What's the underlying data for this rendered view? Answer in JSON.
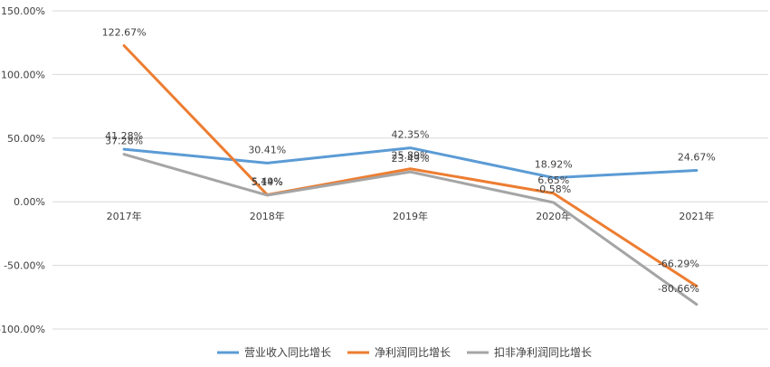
{
  "chart_data": {
    "type": "line",
    "categories": [
      "2017年",
      "2018年",
      "2019年",
      "2020年",
      "2021年"
    ],
    "series": [
      {
        "name": "营业收入同比增长",
        "color": "#5B9BD5",
        "values": [
          41.28,
          30.41,
          42.35,
          18.92,
          24.67
        ],
        "labels": [
          "41.28%",
          "30.41%",
          "42.35%",
          "18.92%",
          "24.67%"
        ]
      },
      {
        "name": "净利润同比增长",
        "color": "#ED7D31",
        "values": [
          122.67,
          5.49,
          25.89,
          6.65,
          -66.29
        ],
        "labels": [
          "122.67%",
          "5.49%",
          "25.89%",
          "6.65%",
          "-66.29%"
        ]
      },
      {
        "name": "扣非净利润同比增长",
        "color": "#A5A5A5",
        "values": [
          37.28,
          5.14,
          23.49,
          -0.58,
          -80.66
        ],
        "labels": [
          "37.28%",
          "5.14%",
          "23.49%",
          "-0.58%",
          "-80.66%"
        ]
      }
    ],
    "yticks": [
      "150.00%",
      "100.00%",
      "50.00%",
      "0.00%",
      "-50.00%",
      "-100.00%"
    ],
    "ylim": [
      -100,
      150
    ],
    "grid": true,
    "legend": "bottom"
  }
}
